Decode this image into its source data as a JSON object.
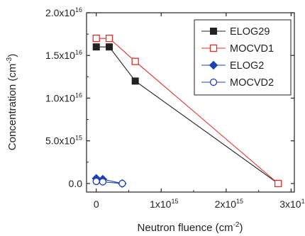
{
  "chart_data": {
    "type": "line",
    "xlabel": "Neutron fluence (cm",
    "xlabel_sup": "-2",
    "xlabel_end": ")",
    "ylabel": "Concentration (cm",
    "ylabel_sup": "-3",
    "ylabel_end": ")",
    "xlim": [
      -150000000000000.0,
      3050000000000000.0
    ],
    "ylim": [
      -1000000000000000.0,
      2e+16
    ],
    "x_ticks": [
      {
        "value": 0,
        "base": "0",
        "exp": ""
      },
      {
        "value": 1000000000000000.0,
        "base": "1x10",
        "exp": "15"
      },
      {
        "value": 2000000000000000.0,
        "base": "2x10",
        "exp": "15"
      },
      {
        "value": 3000000000000000.0,
        "base": "3x10",
        "exp": "15"
      }
    ],
    "y_ticks": [
      {
        "value": 0,
        "base": "0.0",
        "exp": ""
      },
      {
        "value": 5000000000000000.0,
        "base": "5.0x10",
        "exp": "15"
      },
      {
        "value": 1e+16,
        "base": "1.0x10",
        "exp": "16"
      },
      {
        "value": 1.5e+16,
        "base": "1.5x10",
        "exp": "16"
      },
      {
        "value": 2e+16,
        "base": "2.0x10",
        "exp": "16"
      }
    ],
    "legend_position": "top-right",
    "series": [
      {
        "name": "ELOG29",
        "color": "#222222",
        "marker": "square-filled",
        "points": [
          [
            0,
            1.6e+16
          ],
          [
            200000000000000.0,
            1.6e+16
          ],
          [
            600000000000000.0,
            1.2e+16
          ],
          [
            2800000000000000.0,
            0
          ]
        ]
      },
      {
        "name": "MOCVD1",
        "color": "#e0302a",
        "marker": "square-open",
        "points": [
          [
            0,
            1.7e+16
          ],
          [
            200000000000000.0,
            1.7e+16
          ],
          [
            600000000000000.0,
            1.43e+16
          ],
          [
            2800000000000000.0,
            0
          ]
        ]
      },
      {
        "name": "ELOG2",
        "color": "#1f3fb5",
        "marker": "diamond-filled",
        "points": [
          [
            0,
            600000000000000.0
          ],
          [
            100000000000000.0,
            500000000000000.0
          ],
          [
            400000000000000.0,
            0
          ]
        ]
      },
      {
        "name": "MOCVD2",
        "color": "#1f3fb5",
        "marker": "circle-open",
        "points": [
          [
            0,
            250000000000000.0
          ],
          [
            100000000000000.0,
            200000000000000.0
          ],
          [
            400000000000000.0,
            0
          ]
        ]
      }
    ]
  }
}
